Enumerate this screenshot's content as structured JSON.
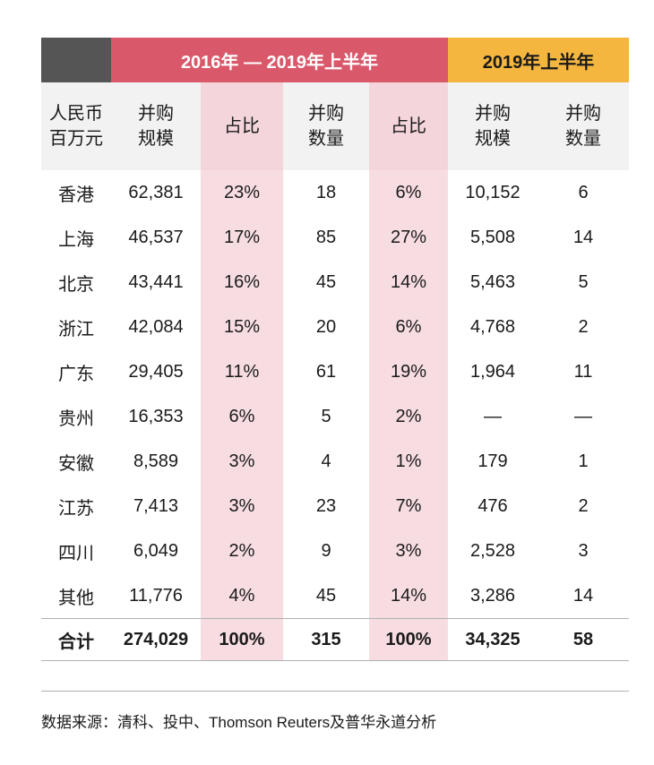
{
  "header": {
    "group_1": "2016年 — 2019年上半年",
    "group_2": "2019年上半年"
  },
  "columns": [
    [
      "人民币",
      "百万元"
    ],
    [
      "并购",
      "规模"
    ],
    [
      "占比"
    ],
    [
      "并购",
      "数量"
    ],
    [
      "占比"
    ],
    [
      "并购",
      "规模"
    ],
    [
      "并购",
      "数量"
    ]
  ],
  "rows": [
    [
      "香港",
      "62,381",
      "23%",
      "18",
      "6%",
      "10,152",
      "6"
    ],
    [
      "上海",
      "46,537",
      "17%",
      "85",
      "27%",
      "5,508",
      "14"
    ],
    [
      "北京",
      "43,441",
      "16%",
      "45",
      "14%",
      "5,463",
      "5"
    ],
    [
      "浙江",
      "42,084",
      "15%",
      "20",
      "6%",
      "4,768",
      "2"
    ],
    [
      "广东",
      "29,405",
      "11%",
      "61",
      "19%",
      "1,964",
      "11"
    ],
    [
      "贵州",
      "16,353",
      "6%",
      "5",
      "2%",
      "—",
      "—"
    ],
    [
      "安徽",
      "8,589",
      "3%",
      "4",
      "1%",
      "179",
      "1"
    ],
    [
      "江苏",
      "7,413",
      "3%",
      "23",
      "7%",
      "476",
      "2"
    ],
    [
      "四川",
      "6,049",
      "2%",
      "9",
      "3%",
      "2,528",
      "3"
    ],
    [
      "其他",
      "11,776",
      "4%",
      "45",
      "14%",
      "3,286",
      "14"
    ]
  ],
  "total": [
    "合计",
    "274,029",
    "100%",
    "315",
    "100%",
    "34,325",
    "58"
  ],
  "source": "数据来源：清科、投中、Thomson Reuters及普华永道分析",
  "colors": {
    "group_1_bg": "#d9596b",
    "group_2_bg": "#f4b63f",
    "corner_bg": "#555555",
    "share_col_bg": "#f7dde2"
  }
}
